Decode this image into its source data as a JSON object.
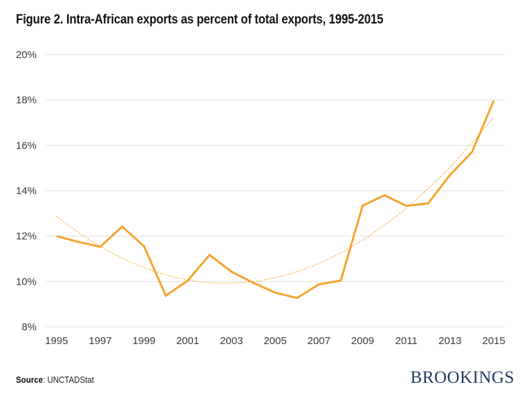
{
  "title": "Figure 2. Intra-African exports as percent of total exports, 1995-2015",
  "source": {
    "label": "Source",
    "text": ": UNCTADStat"
  },
  "logo": "BROOKINGS",
  "colors": {
    "line": "#f7a32e",
    "trend": "#f7a32e",
    "grid": "#e2e2e2",
    "logo": "#1f3a68"
  },
  "chart_data": {
    "type": "line",
    "title": "Figure 2. Intra-African exports as percent of total exports, 1995-2015",
    "xlabel": "",
    "ylabel": "",
    "x": [
      1995,
      1996,
      1997,
      1998,
      1999,
      2000,
      2001,
      2002,
      2003,
      2004,
      2005,
      2006,
      2007,
      2008,
      2009,
      2010,
      2011,
      2012,
      2013,
      2014,
      2015
    ],
    "series": [
      {
        "name": "Intra-African exports (% of total)",
        "values": [
          12.0,
          11.74,
          11.53,
          12.42,
          11.55,
          9.37,
          10.04,
          11.17,
          10.43,
          9.94,
          9.51,
          9.27,
          9.87,
          10.04,
          13.34,
          13.8,
          13.33,
          13.44,
          14.7,
          15.7,
          17.98
        ]
      }
    ],
    "trendline": {
      "type": "polynomial",
      "order": 2,
      "style": "dotted"
    },
    "ylim": [
      8,
      20
    ],
    "yticks": [
      8,
      10,
      12,
      14,
      16,
      18,
      20
    ],
    "ytick_labels": [
      "8%",
      "10%",
      "12%",
      "14%",
      "16%",
      "18%",
      "20%"
    ],
    "xticks": [
      1995,
      1997,
      1999,
      2001,
      2003,
      2005,
      2007,
      2009,
      2011,
      2013,
      2015
    ],
    "xtick_labels": [
      "1995",
      "1997",
      "1999",
      "2001",
      "2003",
      "2005",
      "2007",
      "2009",
      "2011",
      "2013",
      "2015"
    ],
    "grid": "horizontal",
    "legend": "none"
  }
}
